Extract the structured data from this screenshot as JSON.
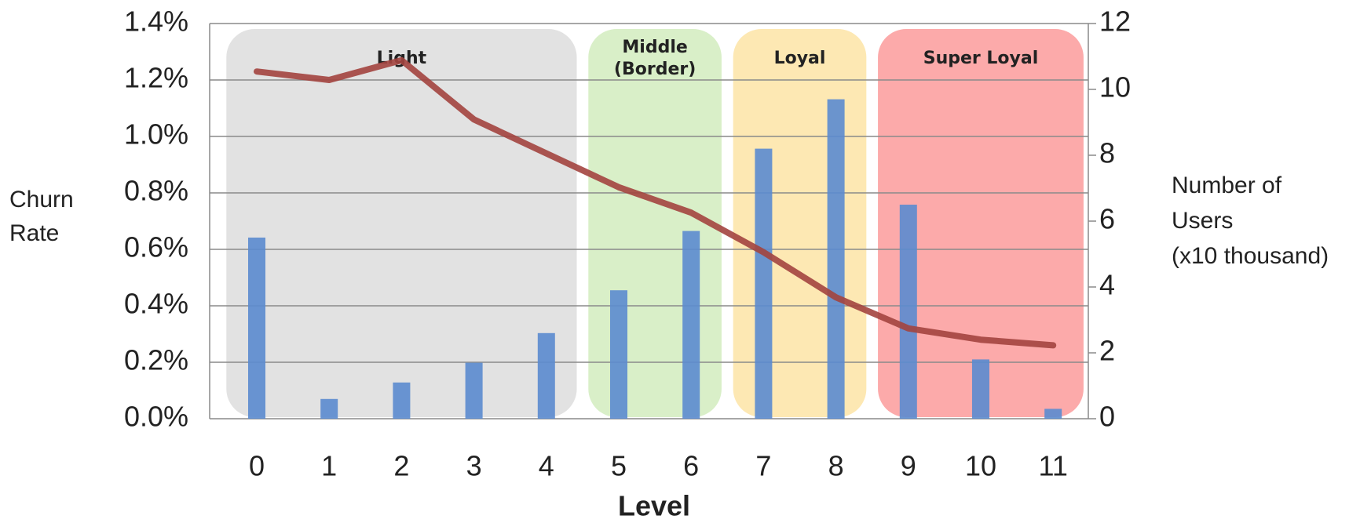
{
  "chart_data": {
    "type": "bar",
    "categories": [
      "0",
      "1",
      "2",
      "3",
      "4",
      "5",
      "6",
      "7",
      "8",
      "9",
      "10",
      "11"
    ],
    "series": [
      {
        "type": "bar",
        "axis": "y2",
        "color": "#5b8bcf",
        "values": [
          5.5,
          0.6,
          1.1,
          1.7,
          2.6,
          3.9,
          5.7,
          8.2,
          9.7,
          6.5,
          1.8,
          0.3
        ]
      },
      {
        "type": "line",
        "color": "#a3443f",
        "values": [
          1.23,
          1.2,
          1.27,
          1.06,
          0.94,
          0.82,
          0.73,
          0.59,
          0.43,
          0.32,
          0.28,
          0.26
        ]
      }
    ],
    "ylim": [
      0,
      1.4
    ],
    "yticks": [
      {
        "value": 0,
        "label": "0.0%"
      },
      {
        "value": 0.2,
        "label": "0.2%"
      },
      {
        "value": 0.4,
        "label": "0.4%"
      },
      {
        "value": 0.6,
        "label": "0.6%"
      },
      {
        "value": 0.8,
        "label": "0.8%"
      },
      {
        "value": 1.0,
        "label": "1.0%"
      },
      {
        "value": 1.2,
        "label": "1.2%"
      },
      {
        "value": 1.4,
        "label": "1.4%"
      }
    ],
    "y2lim": [
      0,
      12
    ],
    "y2ticks": [
      0,
      2,
      4,
      6,
      8,
      10,
      12
    ],
    "grid": true,
    "xlabel": "Level",
    "ylabel": [
      "Churn",
      "Rate"
    ],
    "y2label": [
      "Number of",
      "Users",
      "(x10 thousand)"
    ],
    "regions": [
      {
        "label": [
          "Light"
        ],
        "from": 0,
        "to": 4,
        "color": "#e2e2e2"
      },
      {
        "label": [
          "Middle",
          "(Border)"
        ],
        "from": 5,
        "to": 6,
        "color": "#d9efc8"
      },
      {
        "label": [
          "Loyal"
        ],
        "from": 7,
        "to": 8,
        "color": "#fde8b3"
      },
      {
        "label": [
          "Super Loyal"
        ],
        "from": 9,
        "to": 11,
        "color": "#fcaaaa"
      }
    ]
  }
}
